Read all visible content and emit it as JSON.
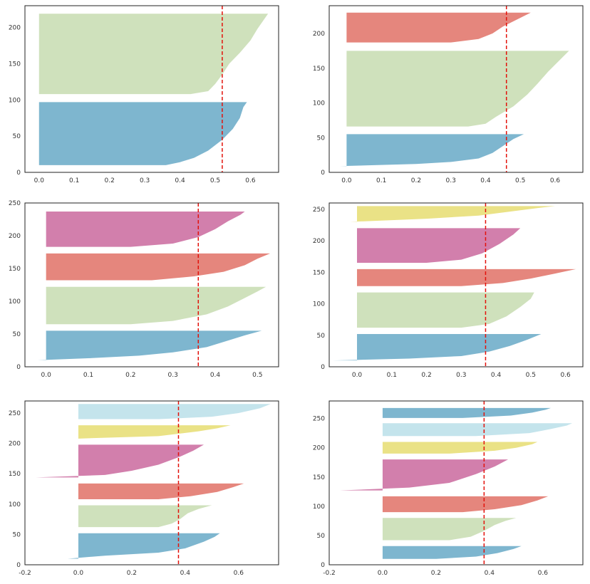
{
  "colors": {
    "blue": "#7eb6cf",
    "green": "#cfe1bc",
    "red": "#e5867d",
    "magenta": "#d27fac",
    "yellow": "#eae286",
    "lightblue": "#c4e4ec",
    "avg_line": "#e3120b"
  },
  "chart_data": [
    {
      "type": "area",
      "title": "",
      "xlabel": "",
      "ylabel": "",
      "xlim": [
        -0.04,
        0.68
      ],
      "ylim": [
        0,
        230
      ],
      "xticks": [
        0.0,
        0.1,
        0.2,
        0.3,
        0.4,
        0.5,
        0.6
      ],
      "xtick_labels": [
        "0.0",
        "0.1",
        "0.2",
        "0.3",
        "0.4",
        "0.5",
        "0.6"
      ],
      "yticks": [
        0,
        50,
        100,
        150,
        200
      ],
      "ytick_labels": [
        "0",
        "50",
        "100",
        "150",
        "200"
      ],
      "average_silhouette": 0.52,
      "clusters": [
        {
          "color": "blue",
          "y0": 10,
          "y1": 97,
          "points": [
            [
              0.36,
              10
            ],
            [
              0.4,
              14
            ],
            [
              0.44,
              20
            ],
            [
              0.48,
              30
            ],
            [
              0.52,
              45
            ],
            [
              0.55,
              60
            ],
            [
              0.57,
              75
            ],
            [
              0.58,
              90
            ],
            [
              0.59,
              97
            ]
          ]
        },
        {
          "color": "green",
          "y0": 108,
          "y1": 219,
          "points": [
            [
              0.43,
              108
            ],
            [
              0.48,
              112
            ],
            [
              0.5,
              122
            ],
            [
              0.52,
              135
            ],
            [
              0.54,
              150
            ],
            [
              0.57,
              165
            ],
            [
              0.6,
              182
            ],
            [
              0.62,
              198
            ],
            [
              0.64,
              212
            ],
            [
              0.65,
              219
            ]
          ]
        }
      ]
    },
    {
      "type": "area",
      "title": "",
      "xlabel": "",
      "ylabel": "",
      "xlim": [
        -0.05,
        0.68
      ],
      "ylim": [
        0,
        240
      ],
      "xticks": [
        0.0,
        0.1,
        0.2,
        0.3,
        0.4,
        0.5,
        0.6
      ],
      "xtick_labels": [
        "0.0",
        "0.1",
        "0.2",
        "0.3",
        "0.4",
        "0.5",
        "0.6"
      ],
      "yticks": [
        0,
        50,
        100,
        150,
        200
      ],
      "ytick_labels": [
        "0",
        "50",
        "100",
        "150",
        "200"
      ],
      "average_silhouette": 0.46,
      "clusters": [
        {
          "color": "blue",
          "y0": 9,
          "y1": 55,
          "points": [
            [
              -0.02,
              9
            ],
            [
              0.2,
              12
            ],
            [
              0.3,
              15
            ],
            [
              0.38,
              20
            ],
            [
              0.42,
              28
            ],
            [
              0.45,
              38
            ],
            [
              0.48,
              48
            ],
            [
              0.51,
              55
            ]
          ]
        },
        {
          "color": "green",
          "y0": 66,
          "y1": 175,
          "points": [
            [
              0.35,
              66
            ],
            [
              0.4,
              70
            ],
            [
              0.43,
              80
            ],
            [
              0.48,
              95
            ],
            [
              0.52,
              112
            ],
            [
              0.55,
              128
            ],
            [
              0.58,
              145
            ],
            [
              0.61,
              160
            ],
            [
              0.63,
              170
            ],
            [
              0.64,
              175
            ]
          ]
        },
        {
          "color": "red",
          "y0": 187,
          "y1": 230,
          "points": [
            [
              0.3,
              187
            ],
            [
              0.38,
              192
            ],
            [
              0.42,
              200
            ],
            [
              0.45,
              210
            ],
            [
              0.49,
              220
            ],
            [
              0.53,
              230
            ]
          ]
        }
      ]
    },
    {
      "type": "area",
      "title": "",
      "xlabel": "",
      "ylabel": "",
      "xlim": [
        -0.05,
        0.55
      ],
      "ylim": [
        0,
        250
      ],
      "xticks": [
        0.0,
        0.1,
        0.2,
        0.3,
        0.4,
        0.5
      ],
      "xtick_labels": [
        "0.0",
        "0.1",
        "0.2",
        "0.3",
        "0.4",
        "0.5"
      ],
      "yticks": [
        0,
        50,
        100,
        150,
        200,
        250
      ],
      "ytick_labels": [
        "0",
        "50",
        "100",
        "150",
        "200",
        "250"
      ],
      "average_silhouette": 0.36,
      "clusters": [
        {
          "color": "blue",
          "y0": 10,
          "y1": 55,
          "points": [
            [
              -0.02,
              10
            ],
            [
              0.1,
              13
            ],
            [
              0.22,
              17
            ],
            [
              0.3,
              22
            ],
            [
              0.38,
              30
            ],
            [
              0.43,
              40
            ],
            [
              0.47,
              48
            ],
            [
              0.51,
              55
            ]
          ]
        },
        {
          "color": "green",
          "y0": 65,
          "y1": 122,
          "points": [
            [
              0.2,
              65
            ],
            [
              0.3,
              70
            ],
            [
              0.38,
              80
            ],
            [
              0.43,
              92
            ],
            [
              0.47,
              105
            ],
            [
              0.5,
              115
            ],
            [
              0.52,
              122
            ]
          ]
        },
        {
          "color": "red",
          "y0": 132,
          "y1": 173,
          "points": [
            [
              0.25,
              132
            ],
            [
              0.35,
              138
            ],
            [
              0.42,
              145
            ],
            [
              0.47,
              155
            ],
            [
              0.5,
              165
            ],
            [
              0.53,
              173
            ]
          ]
        },
        {
          "color": "magenta",
          "y0": 183,
          "y1": 237,
          "points": [
            [
              0.2,
              183
            ],
            [
              0.3,
              188
            ],
            [
              0.36,
              198
            ],
            [
              0.4,
              210
            ],
            [
              0.43,
              222
            ],
            [
              0.46,
              232
            ],
            [
              0.47,
              237
            ]
          ]
        }
      ]
    },
    {
      "type": "area",
      "title": "",
      "xlabel": "",
      "ylabel": "",
      "xlim": [
        -0.08,
        0.65
      ],
      "ylim": [
        0,
        260
      ],
      "xticks": [
        0.0,
        0.1,
        0.2,
        0.3,
        0.4,
        0.5,
        0.6
      ],
      "xtick_labels": [
        "0.0",
        "0.1",
        "0.2",
        "0.3",
        "0.4",
        "0.5",
        "0.6"
      ],
      "yticks": [
        0,
        50,
        100,
        150,
        200,
        250
      ],
      "ytick_labels": [
        "0",
        "50",
        "100",
        "150",
        "200",
        "250"
      ],
      "average_silhouette": 0.37,
      "clusters": [
        {
          "color": "blue",
          "y0": 10,
          "y1": 52,
          "points": [
            [
              -0.07,
              10
            ],
            [
              0.15,
              13
            ],
            [
              0.3,
              17
            ],
            [
              0.38,
              24
            ],
            [
              0.44,
              33
            ],
            [
              0.49,
              43
            ],
            [
              0.53,
              52
            ]
          ]
        },
        {
          "color": "green",
          "y0": 62,
          "y1": 118,
          "points": [
            [
              0.3,
              62
            ],
            [
              0.38,
              68
            ],
            [
              0.43,
              80
            ],
            [
              0.47,
              95
            ],
            [
              0.5,
              108
            ],
            [
              0.51,
              118
            ]
          ]
        },
        {
          "color": "red",
          "y0": 128,
          "y1": 155,
          "points": [
            [
              0.3,
              128
            ],
            [
              0.42,
              133
            ],
            [
              0.5,
              140
            ],
            [
              0.57,
              148
            ],
            [
              0.63,
              155
            ]
          ]
        },
        {
          "color": "magenta",
          "y0": 165,
          "y1": 220,
          "points": [
            [
              0.2,
              165
            ],
            [
              0.3,
              170
            ],
            [
              0.36,
              180
            ],
            [
              0.41,
              195
            ],
            [
              0.45,
              210
            ],
            [
              0.47,
              220
            ]
          ]
        },
        {
          "color": "yellow",
          "y0": 230,
          "y1": 255,
          "points": [
            [
              -0.02,
              230
            ],
            [
              0.2,
              235
            ],
            [
              0.35,
              240
            ],
            [
              0.45,
              247
            ],
            [
              0.52,
              252
            ],
            [
              0.57,
              255
            ]
          ]
        }
      ]
    },
    {
      "type": "area",
      "title": "",
      "xlabel": "",
      "ylabel": "",
      "xlim": [
        -0.2,
        0.75
      ],
      "ylim": [
        0,
        270
      ],
      "xticks": [
        -0.2,
        0.0,
        0.2,
        0.4,
        0.6
      ],
      "xtick_labels": [
        "-0.2",
        "0.0",
        "0.2",
        "0.4",
        "0.6"
      ],
      "yticks": [
        0,
        50,
        100,
        150,
        200,
        250
      ],
      "ytick_labels": [
        "0",
        "50",
        "100",
        "150",
        "200",
        "250"
      ],
      "average_silhouette": 0.375,
      "clusters": [
        {
          "color": "blue",
          "y0": 10,
          "y1": 52,
          "points": [
            [
              -0.04,
              10
            ],
            [
              0.1,
              15
            ],
            [
              0.3,
              20
            ],
            [
              0.4,
              27
            ],
            [
              0.47,
              38
            ],
            [
              0.51,
              46
            ],
            [
              0.53,
              52
            ]
          ]
        },
        {
          "color": "green",
          "y0": 62,
          "y1": 98,
          "points": [
            [
              0.3,
              62
            ],
            [
              0.35,
              68
            ],
            [
              0.38,
              75
            ],
            [
              0.41,
              85
            ],
            [
              0.45,
              92
            ],
            [
              0.5,
              98
            ]
          ]
        },
        {
          "color": "red",
          "y0": 108,
          "y1": 134,
          "points": [
            [
              0.3,
              108
            ],
            [
              0.42,
              113
            ],
            [
              0.52,
              120
            ],
            [
              0.58,
              128
            ],
            [
              0.62,
              134
            ]
          ]
        },
        {
          "color": "magenta",
          "y0": 144,
          "y1": 198,
          "points": [
            [
              -0.16,
              144
            ],
            [
              0.1,
              148
            ],
            [
              0.2,
              155
            ],
            [
              0.3,
              165
            ],
            [
              0.38,
              178
            ],
            [
              0.43,
              188
            ],
            [
              0.47,
              198
            ]
          ]
        },
        {
          "color": "yellow",
          "y0": 208,
          "y1": 230,
          "points": [
            [
              0.0,
              208
            ],
            [
              0.3,
              212
            ],
            [
              0.45,
              220
            ],
            [
              0.52,
              225
            ],
            [
              0.57,
              230
            ]
          ]
        },
        {
          "color": "lightblue",
          "y0": 240,
          "y1": 265,
          "points": [
            [
              0.3,
              240
            ],
            [
              0.5,
              244
            ],
            [
              0.6,
              250
            ],
            [
              0.68,
              258
            ],
            [
              0.72,
              265
            ]
          ]
        }
      ]
    },
    {
      "type": "area",
      "title": "",
      "xlabel": "",
      "ylabel": "",
      "xlim": [
        -0.2,
        0.75
      ],
      "ylim": [
        0,
        280
      ],
      "xticks": [
        -0.2,
        0.0,
        0.2,
        0.4,
        0.6
      ],
      "xtick_labels": [
        "-0.2",
        "0.0",
        "0.2",
        "0.4",
        "0.6"
      ],
      "yticks": [
        0,
        50,
        100,
        150,
        200,
        250
      ],
      "ytick_labels": [
        "0",
        "50",
        "100",
        "150",
        "200",
        "250"
      ],
      "average_silhouette": 0.38,
      "clusters": [
        {
          "color": "blue",
          "y0": 10,
          "y1": 32,
          "points": [
            [
              0.2,
              10
            ],
            [
              0.35,
              14
            ],
            [
              0.43,
              20
            ],
            [
              0.49,
              27
            ],
            [
              0.52,
              32
            ]
          ]
        },
        {
          "color": "green",
          "y0": 42,
          "y1": 80,
          "points": [
            [
              0.25,
              42
            ],
            [
              0.33,
              48
            ],
            [
              0.38,
              58
            ],
            [
              0.42,
              68
            ],
            [
              0.46,
              75
            ],
            [
              0.5,
              80
            ]
          ]
        },
        {
          "color": "red",
          "y0": 90,
          "y1": 117,
          "points": [
            [
              0.3,
              90
            ],
            [
              0.42,
              95
            ],
            [
              0.52,
              102
            ],
            [
              0.58,
              110
            ],
            [
              0.62,
              117
            ]
          ]
        },
        {
          "color": "magenta",
          "y0": 127,
          "y1": 180,
          "points": [
            [
              -0.16,
              127
            ],
            [
              0.1,
              132
            ],
            [
              0.25,
              140
            ],
            [
              0.35,
              155
            ],
            [
              0.42,
              168
            ],
            [
              0.47,
              180
            ]
          ]
        },
        {
          "color": "yellow",
          "y0": 190,
          "y1": 210,
          "points": [
            [
              0.25,
              190
            ],
            [
              0.42,
              195
            ],
            [
              0.5,
              200
            ],
            [
              0.56,
              206
            ],
            [
              0.58,
              210
            ]
          ]
        },
        {
          "color": "lightblue",
          "y0": 220,
          "y1": 242,
          "points": [
            [
              0.35,
              220
            ],
            [
              0.55,
              225
            ],
            [
              0.63,
              232
            ],
            [
              0.69,
              238
            ],
            [
              0.71,
              242
            ]
          ]
        },
        {
          "color": "blue",
          "y0": 251,
          "y1": 268,
          "points": [
            [
              0.3,
              251
            ],
            [
              0.48,
              255
            ],
            [
              0.56,
              260
            ],
            [
              0.61,
              265
            ],
            [
              0.63,
              268
            ]
          ]
        }
      ]
    }
  ]
}
